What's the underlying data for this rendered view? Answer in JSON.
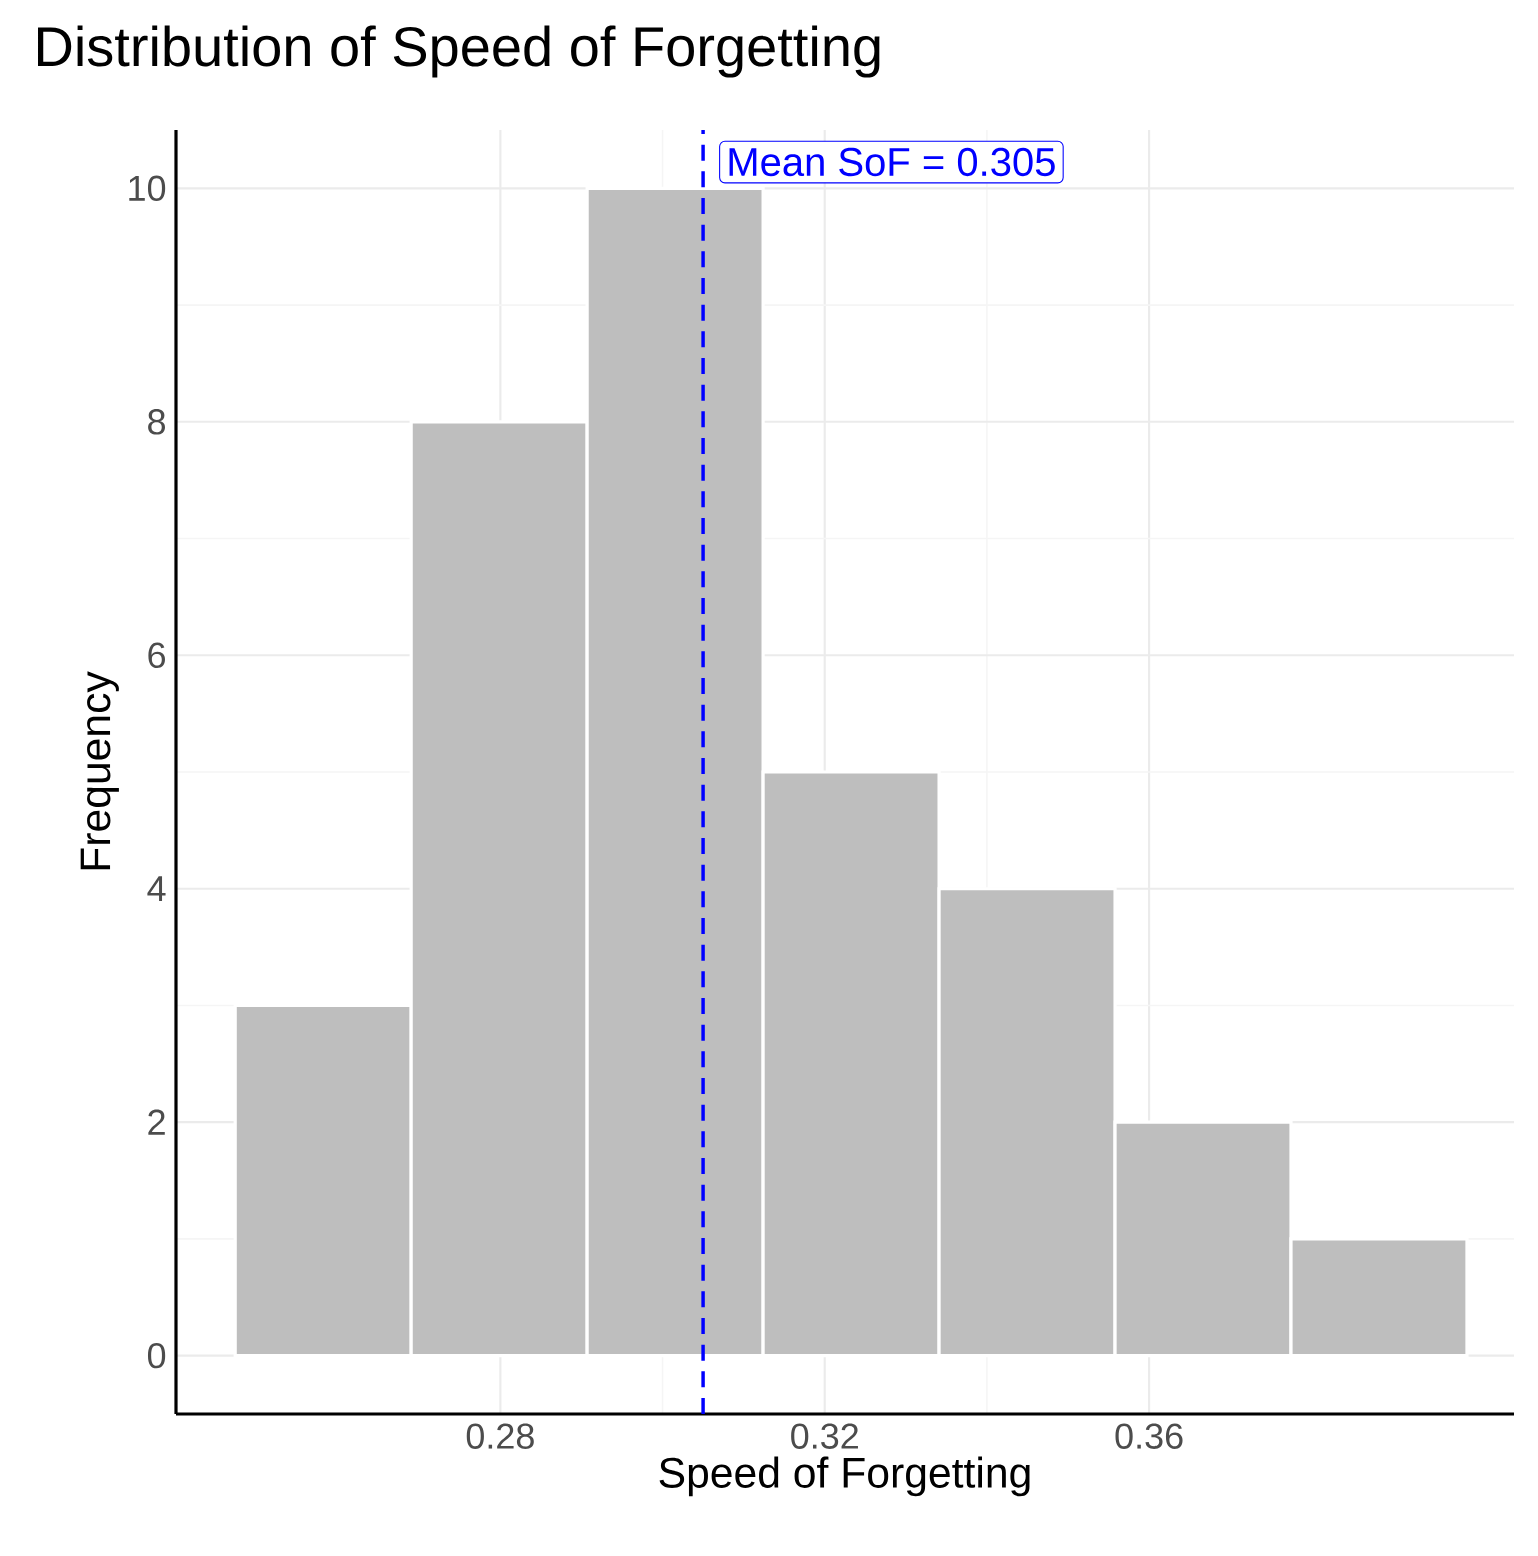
{
  "chart_data": {
    "type": "histogram",
    "title": "Distribution of Speed of Forgetting",
    "xlabel": "Speed of Forgetting",
    "ylabel": "Frequency",
    "bins": [
      0.2473,
      0.269,
      0.2907,
      0.3124,
      0.3341,
      0.3558,
      0.3775,
      0.3992
    ],
    "values": [
      3,
      8,
      10,
      5,
      4,
      2,
      1
    ],
    "color": "#bebebe",
    "xlim": [
      0.24,
      0.405
    ],
    "ylim": [
      -0.5,
      10.5
    ],
    "xticks": [
      0.28,
      0.32,
      0.36
    ],
    "yticks": [
      0,
      2,
      4,
      6,
      8,
      10
    ],
    "grid": true,
    "ref_lines": [
      {
        "axis": "x",
        "value": 0.305,
        "label": "Mean SoF =  0.305",
        "color": "#0000ff",
        "line_style": "dashed"
      }
    ]
  }
}
